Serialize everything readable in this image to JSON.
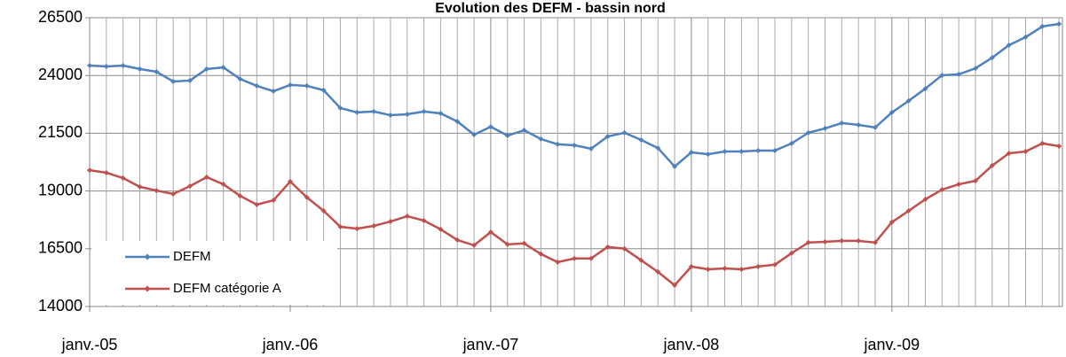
{
  "chart_data": {
    "type": "line",
    "title": "Evolution des DEFM - bassin nord",
    "categories": [
      "janv.-05",
      null,
      null,
      null,
      null,
      null,
      null,
      null,
      null,
      null,
      null,
      null,
      "janv.-06",
      null,
      null,
      null,
      null,
      null,
      null,
      null,
      null,
      null,
      null,
      null,
      "janv.-07",
      null,
      null,
      null,
      null,
      null,
      null,
      null,
      null,
      null,
      null,
      null,
      "janv.-08",
      null,
      null,
      null,
      null,
      null,
      null,
      null,
      null,
      null,
      null,
      null,
      "janv.-09",
      null,
      null,
      null,
      null,
      null,
      null,
      null,
      null,
      null,
      null
    ],
    "series": [
      {
        "name": "DEFM",
        "color": "#4f81bd",
        "values": [
          24430,
          24390,
          24430,
          24280,
          24160,
          23740,
          23780,
          24280,
          24350,
          23850,
          23550,
          23320,
          23590,
          23550,
          23360,
          22590,
          22400,
          22440,
          22280,
          22320,
          22440,
          22360,
          22010,
          21440,
          21780,
          21400,
          21630,
          21250,
          21020,
          20980,
          20830,
          21360,
          21520,
          21210,
          20860,
          20060,
          20670,
          20590,
          20710,
          20710,
          20750,
          20750,
          21060,
          21520,
          21710,
          21940,
          21860,
          21750,
          22400,
          22900,
          23430,
          24010,
          24050,
          24310,
          24770,
          25310,
          25660,
          26120,
          26230
        ]
      },
      {
        "name": "DEFM catégorie A",
        "color": "#c0504d",
        "values": [
          19900,
          19790,
          19560,
          19180,
          19020,
          18870,
          19210,
          19600,
          19290,
          18790,
          18410,
          18600,
          19410,
          18720,
          18140,
          17450,
          17370,
          17490,
          17680,
          17910,
          17720,
          17340,
          16880,
          16650,
          17220,
          16690,
          16730,
          16270,
          15920,
          16080,
          16080,
          16580,
          16500,
          16000,
          15500,
          14920,
          15730,
          15610,
          15650,
          15610,
          15730,
          15810,
          16310,
          16770,
          16800,
          16840,
          16840,
          16770,
          17650,
          18140,
          18640,
          19060,
          19290,
          19440,
          20100,
          20630,
          20710,
          21060,
          20940
        ]
      }
    ],
    "ylim": [
      14000,
      26500
    ],
    "yticks": [
      14000,
      16500,
      19000,
      21500,
      24000,
      26500
    ],
    "grid": true,
    "legend": "lower left"
  }
}
